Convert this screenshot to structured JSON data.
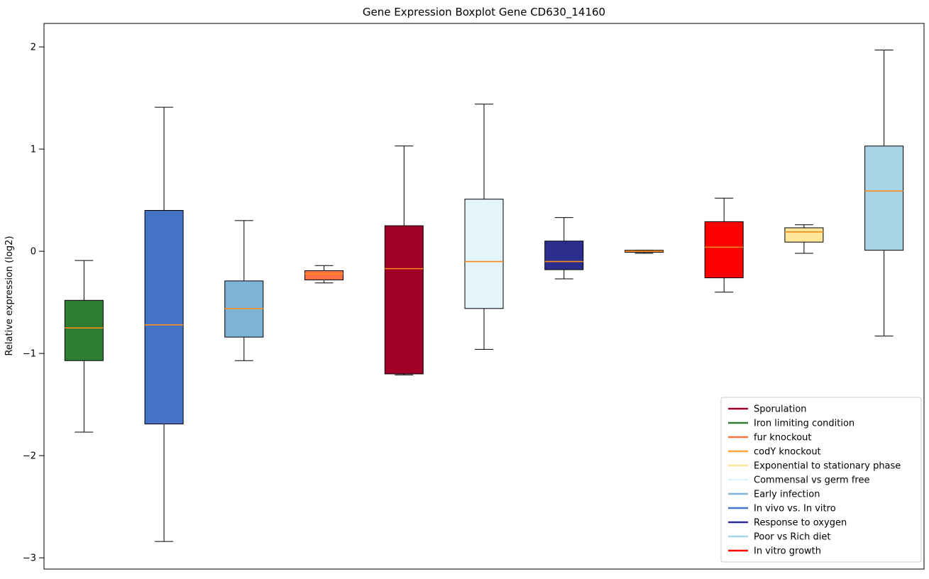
{
  "figure": {
    "title": "Gene Expression Boxplot Gene CD630_14160",
    "ylabel": "Relative expression (log2)"
  },
  "chart_data": {
    "type": "boxplot",
    "title": "Gene Expression Boxplot Gene CD630_14160",
    "xlabel": "",
    "ylabel": "Relative expression (log2)",
    "ylim": [
      -3.11,
      2.23
    ],
    "yticks": [
      2,
      1,
      0,
      -1,
      -2,
      -3
    ],
    "x_tick_labels": [],
    "grid": false,
    "legend_position": "lower right",
    "median_color": "#FF8C1A",
    "box_edge_color": "#000000",
    "boxes": [
      {
        "label": "Iron limiting condition",
        "color": "#2E7D32",
        "whisker_low": -1.77,
        "q1": -1.07,
        "median": -0.75,
        "q3": -0.48,
        "whisker_high": -0.09
      },
      {
        "label": "In vivo vs. In vitro",
        "color": "#4472C4",
        "whisker_low": -2.84,
        "q1": -1.69,
        "median": -0.72,
        "q3": 0.4,
        "whisker_high": 1.41
      },
      {
        "label": "Early infection",
        "color": "#7EB3D8",
        "whisker_low": -1.07,
        "q1": -0.84,
        "median": -0.56,
        "q3": -0.29,
        "whisker_high": 0.3
      },
      {
        "label": "fur knockout",
        "color": "#FF7043",
        "whisker_low": -0.31,
        "q1": -0.28,
        "median": -0.22,
        "q3": -0.19,
        "whisker_high": -0.14
      },
      {
        "label": "Sporulation",
        "color": "#A00028",
        "whisker_low": -1.21,
        "q1": -1.2,
        "median": -0.17,
        "q3": 0.25,
        "whisker_high": 1.03
      },
      {
        "label": "Commensal vs germ free",
        "color": "#E4F4FB",
        "whisker_low": -0.96,
        "q1": -0.56,
        "median": -0.1,
        "q3": 0.51,
        "whisker_high": 1.44
      },
      {
        "label": "Response to oxygen",
        "color": "#2B2E8C",
        "whisker_low": -0.27,
        "q1": -0.18,
        "median": -0.1,
        "q3": 0.1,
        "whisker_high": 0.33
      },
      {
        "label": "codY knockout",
        "color": "#FFA640",
        "whisker_low": -0.02,
        "q1": -0.01,
        "median": 0.0,
        "q3": 0.01,
        "whisker_high": 0.01
      },
      {
        "label": "In vitro growth",
        "color": "#FF0000",
        "whisker_low": -0.4,
        "q1": -0.26,
        "median": 0.04,
        "q3": 0.29,
        "whisker_high": 0.52
      },
      {
        "label": "Exponential to stationary phase",
        "color": "#FFE699",
        "whisker_low": -0.02,
        "q1": 0.09,
        "median": 0.19,
        "q3": 0.23,
        "whisker_high": 0.26
      },
      {
        "label": "Poor vs Rich diet",
        "color": "#A9D4E8",
        "whisker_low": -0.83,
        "q1": 0.01,
        "median": 0.59,
        "q3": 1.03,
        "whisker_high": 1.97
      }
    ],
    "legend": [
      {
        "label": "Sporulation",
        "color": "#A00028"
      },
      {
        "label": "Iron limiting condition",
        "color": "#2E7D32"
      },
      {
        "label": "fur knockout",
        "color": "#FF7043"
      },
      {
        "label": "codY knockout",
        "color": "#FFA640"
      },
      {
        "label": "Exponential to stationary phase",
        "color": "#FFE699"
      },
      {
        "label": "Commensal vs germ free",
        "color": "#E4F4FB"
      },
      {
        "label": "Early infection",
        "color": "#7EB3D8"
      },
      {
        "label": "In vivo vs. In vitro",
        "color": "#4472C4"
      },
      {
        "label": "Response to oxygen",
        "color": "#2B2E8C"
      },
      {
        "label": "Poor vs Rich diet",
        "color": "#A9D4E8"
      },
      {
        "label": "In vitro growth",
        "color": "#FF0000"
      }
    ]
  }
}
